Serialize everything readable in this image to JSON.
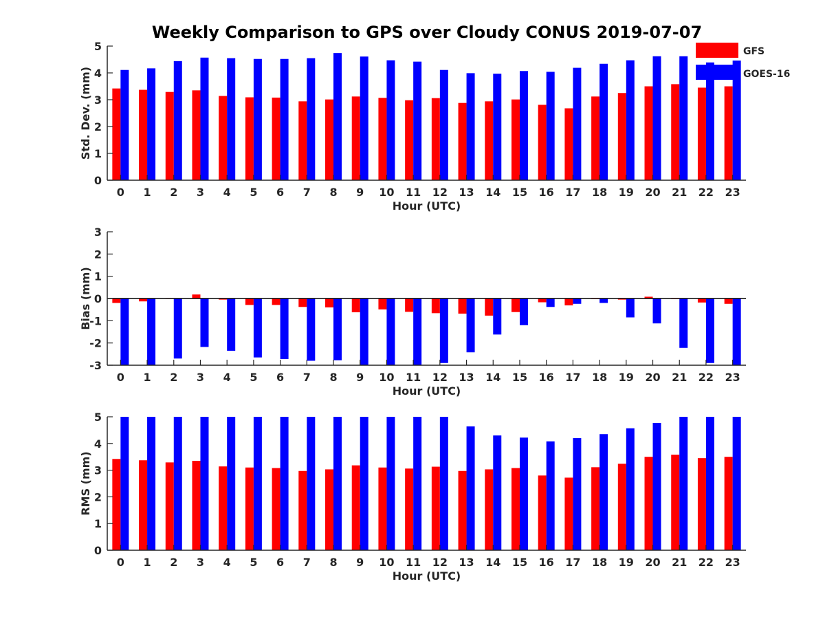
{
  "chart_data": {
    "title": "Weekly Comparison to GPS over Cloudy CONUS 2019-07-07",
    "type": "bar",
    "grid": false,
    "legend": {
      "placement": "top-right",
      "entries": [
        {
          "name": "GFS",
          "color": "#ff0000"
        },
        {
          "name": "GOES-16",
          "color": "#0000ff"
        }
      ]
    },
    "categories": [
      "0",
      "1",
      "2",
      "3",
      "4",
      "5",
      "6",
      "7",
      "8",
      "9",
      "10",
      "11",
      "12",
      "13",
      "14",
      "15",
      "16",
      "17",
      "18",
      "19",
      "20",
      "21",
      "22",
      "23"
    ],
    "panels": [
      {
        "id": "std",
        "ylabel": "Std. Dev. (mm)",
        "xlabel": "Hour (UTC)",
        "ylim": [
          0,
          5
        ],
        "yticks": [
          0,
          1,
          2,
          3,
          4,
          5
        ],
        "series": [
          {
            "name": "GFS",
            "color": "#ff0000",
            "values": [
              3.42,
              3.37,
              3.29,
              3.35,
              3.14,
              3.09,
              3.08,
              2.94,
              3.01,
              3.12,
              3.07,
              2.98,
              3.06,
              2.88,
              2.94,
              3.01,
              2.81,
              2.68,
              3.12,
              3.25,
              3.5,
              3.58,
              3.45,
              3.5
            ]
          },
          {
            "name": "GOES-16",
            "color": "#0000ff",
            "values": [
              4.11,
              4.17,
              4.44,
              4.57,
              4.55,
              4.52,
              4.52,
              4.55,
              4.74,
              4.61,
              4.47,
              4.42,
              4.11,
              3.99,
              3.97,
              4.07,
              4.04,
              4.19,
              4.34,
              4.47,
              4.62,
              4.62,
              4.39,
              4.46
            ]
          }
        ]
      },
      {
        "id": "bias",
        "ylabel": "Bias (mm)",
        "xlabel": "Hour (UTC)",
        "ylim": [
          -3,
          3
        ],
        "yticks": [
          -3,
          -2,
          -1,
          0,
          1,
          2,
          3
        ],
        "series": [
          {
            "name": "GFS",
            "color": "#ff0000",
            "values": [
              -0.2,
              -0.13,
              0.02,
              0.18,
              -0.05,
              -0.29,
              -0.29,
              -0.38,
              -0.4,
              -0.62,
              -0.49,
              -0.6,
              -0.66,
              -0.68,
              -0.77,
              -0.61,
              -0.17,
              -0.31,
              0.0,
              -0.05,
              0.08,
              0.0,
              -0.18,
              -0.24
            ]
          },
          {
            "name": "GOES-16",
            "color": "#0000ff",
            "values": [
              -3.2,
              -3.1,
              -2.7,
              -2.18,
              -2.35,
              -2.65,
              -2.72,
              -2.8,
              -2.78,
              -3.1,
              -3.1,
              -3.1,
              -2.9,
              -2.42,
              -1.62,
              -1.2,
              -0.38,
              -0.24,
              -0.2,
              -0.85,
              -1.12,
              -2.22,
              -2.9,
              -3.1
            ]
          }
        ]
      },
      {
        "id": "rms",
        "ylabel": "RMS (mm)",
        "xlabel": "Hour (UTC)",
        "ylim": [
          0,
          5
        ],
        "yticks": [
          0,
          1,
          2,
          3,
          4,
          5
        ],
        "series": [
          {
            "name": "GFS",
            "color": "#ff0000",
            "values": [
              3.42,
              3.37,
              3.29,
              3.35,
              3.14,
              3.1,
              3.08,
              2.97,
              3.03,
              3.18,
              3.1,
              3.06,
              3.13,
              2.97,
              3.03,
              3.08,
              2.8,
              2.72,
              3.11,
              3.24,
              3.5,
              3.58,
              3.45,
              3.5
            ]
          },
          {
            "name": "GOES-16",
            "color": "#0000ff",
            "values": [
              5.3,
              5.3,
              5.3,
              5.3,
              5.3,
              5.3,
              5.3,
              5.3,
              5.3,
              5.3,
              5.3,
              5.3,
              5.2,
              4.64,
              4.3,
              4.22,
              4.08,
              4.2,
              4.35,
              4.57,
              4.77,
              5.3,
              5.3,
              5.3
            ]
          }
        ]
      }
    ]
  }
}
